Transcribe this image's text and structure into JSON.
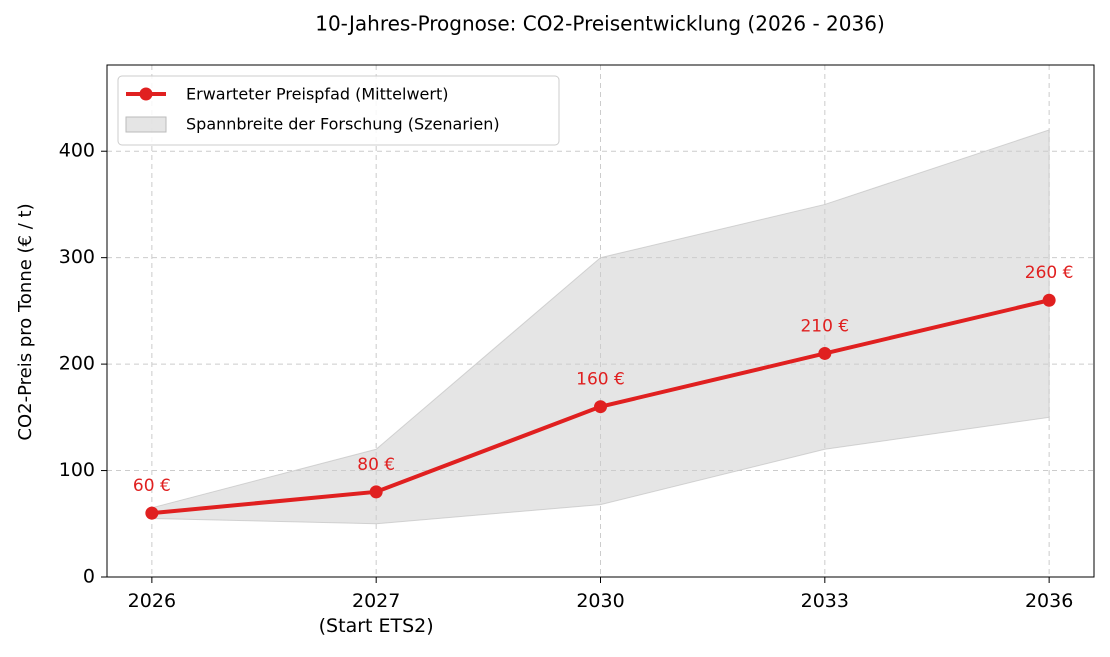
{
  "chart_data": {
    "type": "line",
    "title": "10-Jahres-Prognose: CO2-Preisentwicklung (2026 - 2036)",
    "y_label": "CO2-Preis pro Tonne (€ / t)",
    "categories": [
      "2026",
      "2027\n(Start ETS2)",
      "2030",
      "2033",
      "2036"
    ],
    "series": [
      {
        "name": "Erwarteter Preispfad (Mittelwert)",
        "color": "#e02020",
        "values": [
          60,
          80,
          160,
          210,
          260
        ],
        "value_labels": [
          "60 €",
          "80 €",
          "160 €",
          "210 €",
          "260 €"
        ]
      }
    ],
    "band": {
      "name": "Spannbreite der Forschung (Szenarien)",
      "color": "#d3d3d3",
      "lower": [
        55,
        50,
        68,
        120,
        150
      ],
      "upper": [
        65,
        120,
        300,
        350,
        420
      ]
    },
    "ylim": [
      0,
      481
    ],
    "yticks": [
      0,
      100,
      200,
      300,
      400
    ],
    "grid": true,
    "legend": "upper left"
  }
}
